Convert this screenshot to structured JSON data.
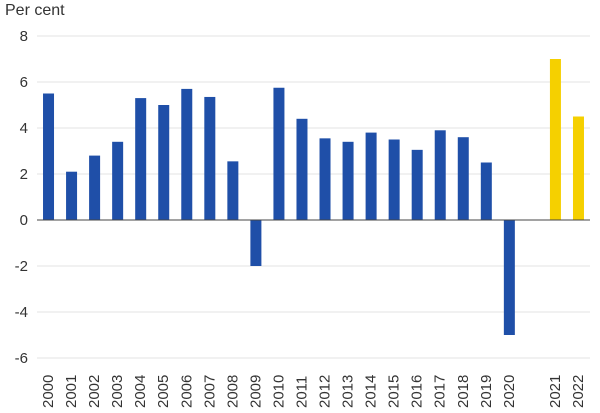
{
  "chart_data": {
    "type": "bar",
    "ylabel": "Per cent",
    "ylim": [
      -6,
      8
    ],
    "yticks": [
      -6,
      -4,
      -2,
      0,
      2,
      4,
      6,
      8
    ],
    "grid": true,
    "categories": [
      "2000",
      "2001",
      "2002",
      "2003",
      "2004",
      "2005",
      "2006",
      "2007",
      "2008",
      "2009",
      "2010",
      "2011",
      "2012",
      "2013",
      "2014",
      "2015",
      "2016",
      "2017",
      "2018",
      "2019",
      "2020",
      "",
      "2021",
      "2022"
    ],
    "values": [
      5.5,
      2.1,
      2.8,
      3.4,
      5.3,
      5.0,
      5.7,
      5.35,
      2.55,
      -2.0,
      5.75,
      4.4,
      3.55,
      3.4,
      3.8,
      3.5,
      3.05,
      3.9,
      3.6,
      2.5,
      -5.0,
      null,
      7.0,
      4.5
    ],
    "bar_colors": [
      "#1f4fa8",
      "#1f4fa8",
      "#1f4fa8",
      "#1f4fa8",
      "#1f4fa8",
      "#1f4fa8",
      "#1f4fa8",
      "#1f4fa8",
      "#1f4fa8",
      "#1f4fa8",
      "#1f4fa8",
      "#1f4fa8",
      "#1f4fa8",
      "#1f4fa8",
      "#1f4fa8",
      "#1f4fa8",
      "#1f4fa8",
      "#1f4fa8",
      "#1f4fa8",
      "#1f4fa8",
      "#1f4fa8",
      null,
      "#f5d000",
      "#f5d000"
    ],
    "colors": {
      "actual": "#1f4fa8",
      "forecast": "#f5d000"
    }
  }
}
